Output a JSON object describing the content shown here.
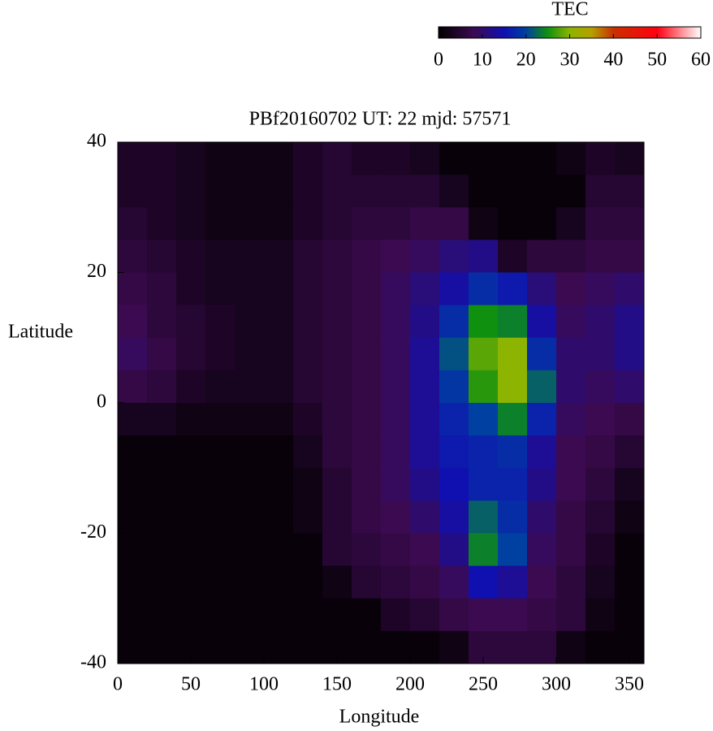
{
  "chart_data": {
    "type": "heatmap",
    "title": "PBf20160702  UT: 22  mjd: 57571",
    "xlabel": "Longitude",
    "ylabel": "Latitude",
    "colorbar_label": "TEC",
    "x": [
      10,
      30,
      50,
      70,
      90,
      110,
      130,
      150,
      170,
      190,
      210,
      230,
      250,
      270,
      290,
      310,
      330,
      350
    ],
    "y": [
      37.5,
      32.5,
      27.5,
      22.5,
      17.5,
      12.5,
      7.5,
      2.5,
      -2.5,
      -7.5,
      -12.5,
      -17.5,
      -22.5,
      -27.5,
      -32.5,
      -37.5
    ],
    "z": [
      [
        4,
        4,
        3,
        2,
        2,
        2,
        4,
        5,
        4,
        4,
        3,
        1,
        1,
        1,
        1,
        2,
        4,
        3
      ],
      [
        4,
        4,
        3,
        2,
        2,
        2,
        4,
        5,
        5,
        5,
        5,
        3,
        1,
        1,
        1,
        1,
        5,
        5
      ],
      [
        5,
        4,
        3,
        2,
        2,
        2,
        4,
        5,
        6,
        6,
        7,
        7,
        2,
        1,
        1,
        3,
        6,
        6
      ],
      [
        6,
        5,
        4,
        3,
        3,
        3,
        5,
        6,
        7,
        8,
        9,
        11,
        12,
        4,
        6,
        6,
        7,
        7
      ],
      [
        7,
        6,
        4,
        3,
        3,
        3,
        5,
        6,
        7,
        9,
        11,
        14,
        18,
        16,
        11,
        8,
        9,
        10
      ],
      [
        8,
        6,
        5,
        4,
        3,
        3,
        5,
        6,
        7,
        9,
        12,
        18,
        25,
        24,
        14,
        9,
        10,
        12
      ],
      [
        9,
        7,
        5,
        4,
        3,
        3,
        5,
        6,
        7,
        9,
        13,
        21,
        28,
        30,
        18,
        10,
        10,
        12
      ],
      [
        7,
        6,
        4,
        3,
        3,
        3,
        5,
        6,
        7,
        9,
        13,
        19,
        26,
        30,
        22,
        10,
        9,
        10
      ],
      [
        3,
        3,
        2,
        2,
        2,
        2,
        4,
        6,
        7,
        9,
        13,
        17,
        20,
        24,
        17,
        9,
        8,
        7
      ],
      [
        1,
        1,
        1,
        1,
        1,
        1,
        3,
        6,
        7,
        9,
        13,
        16,
        17,
        18,
        13,
        8,
        7,
        5
      ],
      [
        1,
        1,
        1,
        1,
        1,
        1,
        2,
        5,
        7,
        9,
        12,
        15,
        17,
        17,
        12,
        8,
        6,
        3
      ],
      [
        1,
        1,
        1,
        1,
        1,
        1,
        2,
        5,
        7,
        8,
        10,
        14,
        22,
        18,
        10,
        7,
        5,
        2
      ],
      [
        1,
        1,
        1,
        1,
        1,
        1,
        1,
        5,
        6,
        7,
        8,
        12,
        24,
        20,
        9,
        7,
        4,
        1
      ],
      [
        1,
        1,
        1,
        1,
        1,
        1,
        1,
        2,
        5,
        6,
        7,
        9,
        15,
        13,
        8,
        6,
        3,
        1
      ],
      [
        1,
        1,
        1,
        1,
        1,
        1,
        1,
        1,
        1,
        4,
        5,
        7,
        8,
        8,
        7,
        6,
        2,
        1
      ],
      [
        1,
        1,
        1,
        1,
        1,
        1,
        1,
        1,
        1,
        1,
        1,
        2,
        6,
        6,
        6,
        2,
        1,
        1
      ]
    ],
    "xlim": [
      0,
      360
    ],
    "ylim": [
      -40,
      40
    ],
    "xticks": [
      0,
      50,
      100,
      150,
      200,
      250,
      300,
      350
    ],
    "yticks": [
      -40,
      -20,
      0,
      20,
      40
    ],
    "clim": [
      0,
      60
    ],
    "cticks": [
      0,
      10,
      20,
      30,
      40,
      50,
      60
    ],
    "colormap": [
      [
        0,
        "#000000"
      ],
      [
        8,
        "#3c0a50"
      ],
      [
        15,
        "#1010b0"
      ],
      [
        20,
        "#0040a0"
      ],
      [
        25,
        "#10900f"
      ],
      [
        30,
        "#8cb400"
      ],
      [
        35,
        "#b4a000"
      ],
      [
        40,
        "#c83000"
      ],
      [
        50,
        "#ff0010"
      ],
      [
        60,
        "#ffffff"
      ]
    ]
  }
}
